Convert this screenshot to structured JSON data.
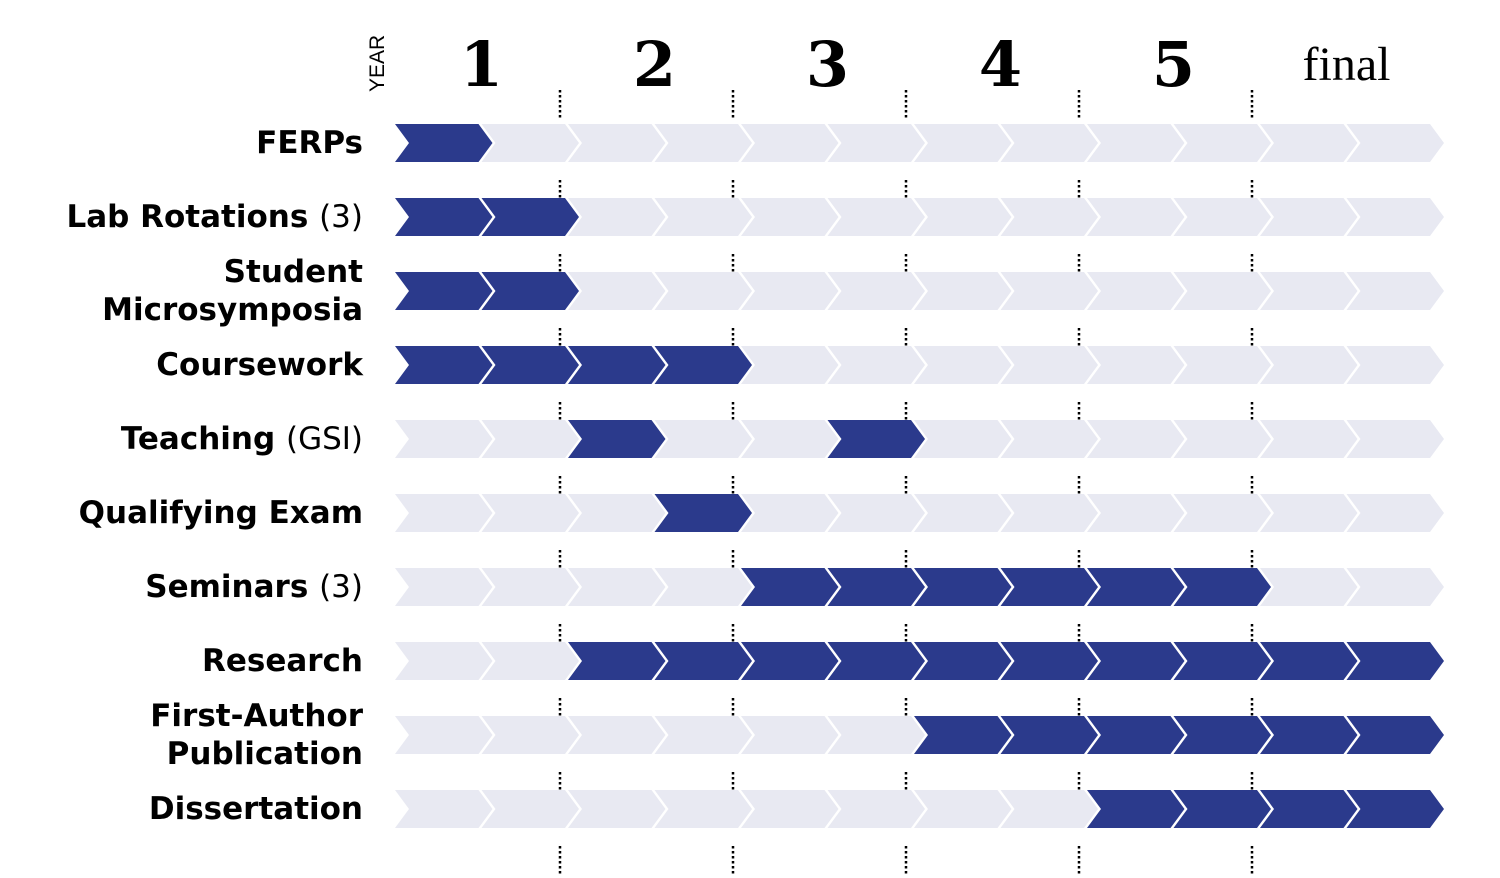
{
  "chart_data": {
    "type": "timeline",
    "axis_label": "YEAR",
    "years": [
      "1",
      "2",
      "3",
      "4",
      "5",
      "final"
    ],
    "segments_per_year": 2,
    "colors": {
      "active": "#2b3a8c",
      "inactive": "#e8e9f2"
    },
    "rows": [
      {
        "label": [
          "FERPs"
        ],
        "note": "",
        "active": [
          0
        ]
      },
      {
        "label": [
          "Lab Rotations"
        ],
        "note": "(3)",
        "active": [
          0,
          1
        ]
      },
      {
        "label": [
          "Student",
          "Microsymposia"
        ],
        "note": "",
        "active": [
          0,
          1
        ]
      },
      {
        "label": [
          "Coursework"
        ],
        "note": "",
        "active": [
          0,
          1,
          2,
          3
        ]
      },
      {
        "label": [
          "Teaching"
        ],
        "note": "(GSI)",
        "active": [
          2,
          5
        ]
      },
      {
        "label": [
          "Qualifying Exam"
        ],
        "note": "",
        "active": [
          3
        ]
      },
      {
        "label": [
          "Seminars"
        ],
        "note": "(3)",
        "active": [
          4,
          5,
          6,
          7,
          8,
          9
        ]
      },
      {
        "label": [
          "Research"
        ],
        "note": "",
        "active": [
          2,
          3,
          4,
          5,
          6,
          7,
          8,
          9,
          10,
          11
        ]
      },
      {
        "label": [
          "First-Author",
          "Publication"
        ],
        "note": "",
        "active": [
          6,
          7,
          8,
          9,
          10,
          11
        ]
      },
      {
        "label": [
          "Dissertation"
        ],
        "note": "",
        "active": [
          8,
          9,
          10,
          11
        ]
      }
    ]
  }
}
